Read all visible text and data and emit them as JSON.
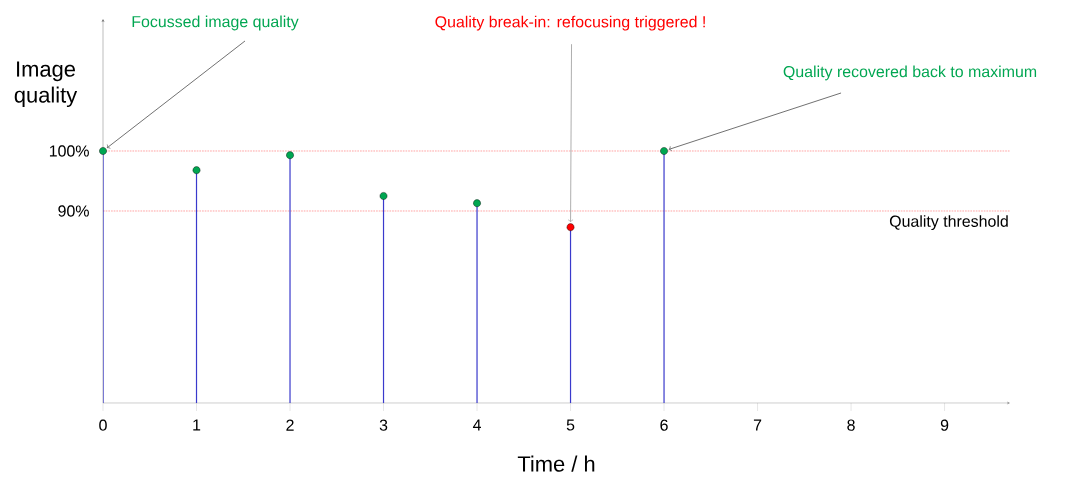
{
  "chart_data": {
    "type": "lollipop",
    "xlabel": "Time / h",
    "ylabel": "Image quality",
    "x": [
      0,
      1,
      2,
      3,
      4,
      5,
      6
    ],
    "values": [
      100,
      96.8,
      99.3,
      92.5,
      91.3,
      87.3,
      100
    ],
    "color": "#3a3acc",
    "colors": [
      "#00a651",
      "#00a651",
      "#00a651",
      "#00a651",
      "#00a651",
      "#ff0000",
      "#00a651"
    ],
    "marker": "circle",
    "xlim": [
      0,
      9.7
    ],
    "ylim": [
      58,
      122
    ],
    "xticks": [
      0,
      1,
      2,
      3,
      4,
      5,
      6,
      7,
      8,
      9
    ],
    "yticks": [
      {
        "value": 90,
        "label": "90%"
      },
      {
        "value": 100,
        "label": "100%"
      }
    ],
    "ref_lines": [
      {
        "axis": "y",
        "value": 100,
        "color": "#ff0000",
        "line_style": "dotted"
      },
      {
        "axis": "y",
        "value": 90,
        "label": "Quality threshold",
        "color": "#ff0000",
        "line_style": "dotted"
      }
    ],
    "annotations": [
      {
        "text": "Focussed image quality",
        "x": 0,
        "y": 100
      },
      {
        "text": "Quality break-in: refocusing triggered !",
        "x": 5,
        "y": 87.3
      },
      {
        "text": "Quality recovered back to maximum",
        "x": 6,
        "y": 100
      }
    ]
  }
}
